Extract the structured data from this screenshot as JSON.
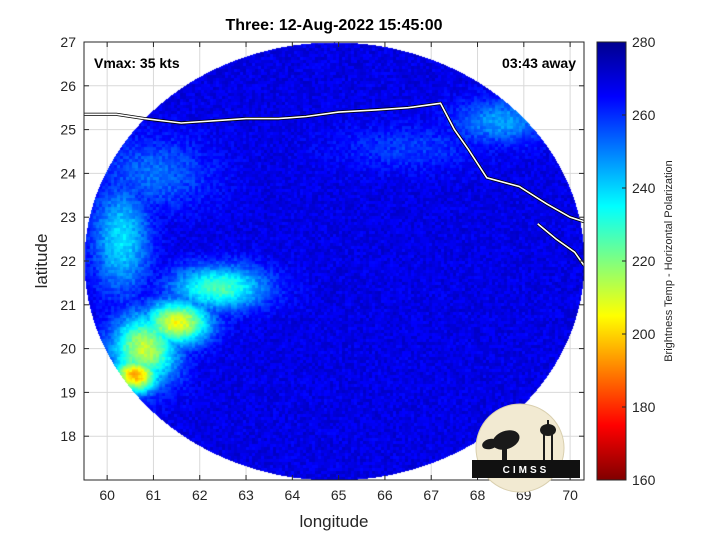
{
  "chart_data": {
    "type": "heatmap",
    "title": "Three: 12-Aug-2022 15:45:00",
    "xlabel": "longitude",
    "ylabel": "latitude",
    "xlim": [
      59.5,
      70.3
    ],
    "ylim": [
      17.0,
      27.0
    ],
    "x_ticks": [
      60,
      61,
      62,
      63,
      64,
      65,
      66,
      67,
      68,
      69,
      70
    ],
    "y_ticks": [
      18,
      19,
      20,
      21,
      22,
      23,
      24,
      25,
      26,
      27
    ],
    "grid": true,
    "annotations": {
      "left": "Vmax: 35 kts",
      "right": "03:43 away"
    },
    "colorbar": {
      "label": "Brightness Temp - Horizontal Polarization",
      "range": [
        160,
        280
      ],
      "ticks": [
        160,
        180,
        200,
        220,
        240,
        260,
        280
      ],
      "colormap": "jet",
      "placement": "right"
    },
    "swath": {
      "center_lon": 64.9,
      "center_lat": 22.0,
      "radius_deg_lon": 5.4,
      "radius_deg_lat": 5.0,
      "background_temp": 268
    },
    "features": [
      {
        "lon": 60.6,
        "lat": 19.4,
        "temp": 196,
        "spread_lon": 0.5,
        "spread_lat": 0.4
      },
      {
        "lon": 61.5,
        "lat": 20.6,
        "temp": 206,
        "spread_lon": 0.7,
        "spread_lat": 0.5
      },
      {
        "lon": 62.4,
        "lat": 21.4,
        "temp": 226,
        "spread_lon": 1.0,
        "spread_lat": 0.5
      },
      {
        "lon": 60.8,
        "lat": 20.0,
        "temp": 212,
        "spread_lon": 0.7,
        "spread_lat": 0.8
      },
      {
        "lon": 60.3,
        "lat": 22.5,
        "temp": 238,
        "spread_lon": 0.6,
        "spread_lat": 1.2
      },
      {
        "lon": 68.5,
        "lat": 25.2,
        "temp": 246,
        "spread_lon": 1.0,
        "spread_lat": 0.5
      },
      {
        "lon": 66.5,
        "lat": 24.6,
        "temp": 258,
        "spread_lon": 1.5,
        "spread_lat": 0.5
      },
      {
        "lon": 61.0,
        "lat": 24.0,
        "temp": 252,
        "spread_lon": 1.2,
        "spread_lat": 0.8
      }
    ],
    "coastline": [
      [
        59.5,
        25.35
      ],
      [
        60.2,
        25.35
      ],
      [
        60.8,
        25.25
      ],
      [
        61.6,
        25.15
      ],
      [
        62.3,
        25.2
      ],
      [
        63.0,
        25.25
      ],
      [
        63.7,
        25.25
      ],
      [
        64.3,
        25.3
      ],
      [
        65.0,
        25.4
      ],
      [
        65.8,
        25.45
      ],
      [
        66.5,
        25.5
      ],
      [
        67.2,
        25.6
      ],
      [
        67.5,
        25.0
      ],
      [
        67.8,
        24.55
      ],
      [
        68.2,
        23.9
      ],
      [
        68.9,
        23.7
      ],
      [
        69.5,
        23.3
      ],
      [
        70.0,
        23.0
      ],
      [
        70.3,
        22.9
      ]
    ],
    "coastline_india": [
      [
        69.3,
        22.85
      ],
      [
        69.7,
        22.5
      ],
      [
        70.1,
        22.2
      ],
      [
        70.3,
        21.9
      ]
    ]
  },
  "logo": {
    "text": "CIMSS"
  }
}
